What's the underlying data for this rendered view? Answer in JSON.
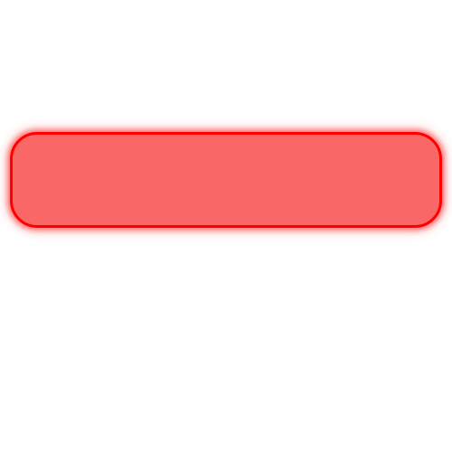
{
  "field": {
    "text": "",
    "fill_color": "#f96767",
    "border_color": "#ff0000",
    "glow_color": "#ff0000"
  }
}
